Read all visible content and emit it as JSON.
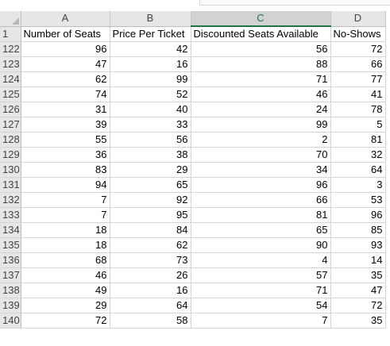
{
  "columns": [
    "A",
    "B",
    "C",
    "D"
  ],
  "header_row": {
    "row_number": "1",
    "labels": [
      "Number of Seats",
      "Price Per Ticket",
      "Discounted Seats Available",
      "No-Shows"
    ]
  },
  "rows": [
    {
      "n": "122",
      "v": [
        "96",
        "42",
        "56",
        "72"
      ]
    },
    {
      "n": "123",
      "v": [
        "47",
        "16",
        "88",
        "66"
      ]
    },
    {
      "n": "124",
      "v": [
        "62",
        "99",
        "71",
        "77"
      ]
    },
    {
      "n": "125",
      "v": [
        "74",
        "52",
        "46",
        "41"
      ]
    },
    {
      "n": "126",
      "v": [
        "31",
        "40",
        "24",
        "78"
      ]
    },
    {
      "n": "127",
      "v": [
        "39",
        "33",
        "99",
        "5"
      ]
    },
    {
      "n": "128",
      "v": [
        "55",
        "56",
        "2",
        "81"
      ]
    },
    {
      "n": "129",
      "v": [
        "36",
        "38",
        "70",
        "32"
      ]
    },
    {
      "n": "130",
      "v": [
        "83",
        "29",
        "34",
        "64"
      ]
    },
    {
      "n": "131",
      "v": [
        "94",
        "65",
        "96",
        "3"
      ]
    },
    {
      "n": "132",
      "v": [
        "7",
        "92",
        "66",
        "53"
      ]
    },
    {
      "n": "133",
      "v": [
        "7",
        "95",
        "81",
        "96"
      ]
    },
    {
      "n": "134",
      "v": [
        "18",
        "84",
        "65",
        "85"
      ]
    },
    {
      "n": "135",
      "v": [
        "18",
        "62",
        "90",
        "93"
      ]
    },
    {
      "n": "136",
      "v": [
        "68",
        "73",
        "4",
        "14"
      ]
    },
    {
      "n": "137",
      "v": [
        "46",
        "26",
        "57",
        "35"
      ]
    },
    {
      "n": "138",
      "v": [
        "49",
        "16",
        "71",
        "47"
      ]
    },
    {
      "n": "139",
      "v": [
        "29",
        "64",
        "54",
        "72"
      ]
    },
    {
      "n": "140",
      "v": [
        "72",
        "58",
        "7",
        "35"
      ]
    }
  ],
  "selected_column": "C"
}
